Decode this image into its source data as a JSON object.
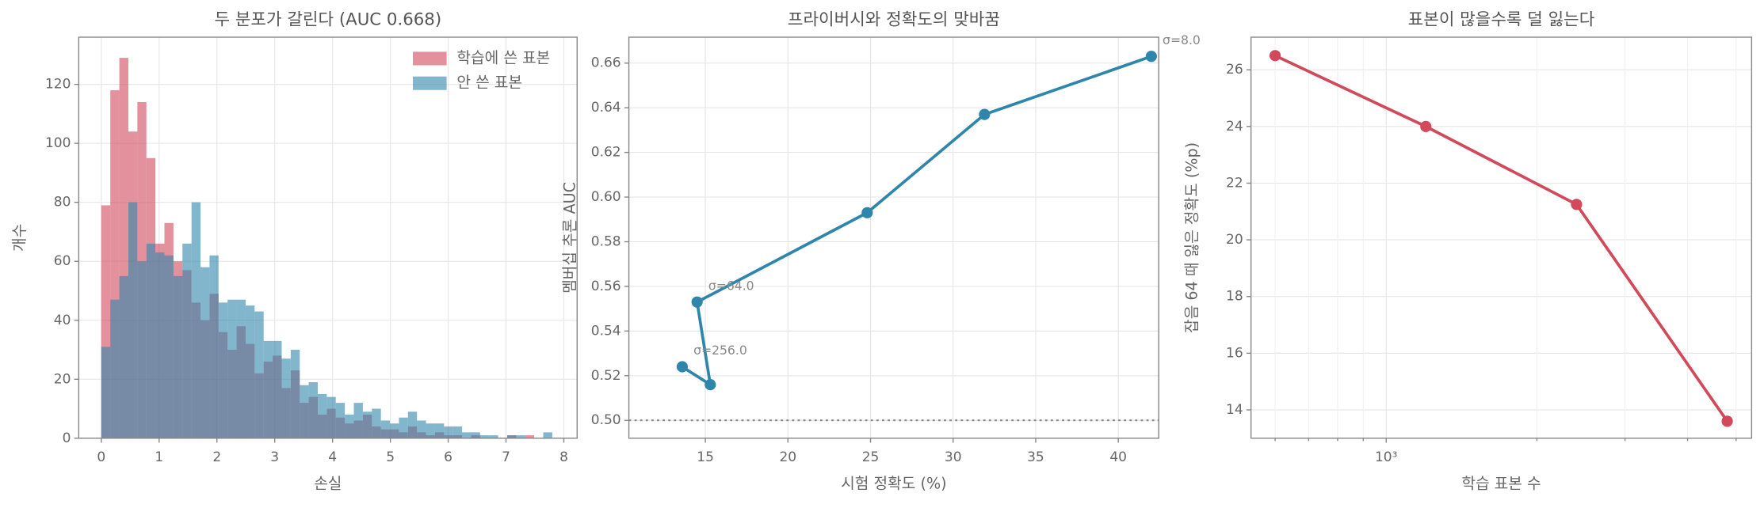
{
  "chart_data": [
    {
      "type": "histogram",
      "title": "두 분포가 갈린다 (AUC 0.668)",
      "xlabel": "손실",
      "ylabel": "개수",
      "bins": [
        0,
        0.156,
        0.312,
        0.468,
        0.624,
        0.78,
        0.936,
        1.092,
        1.248,
        1.404,
        1.56,
        1.716,
        1.872,
        2.028,
        2.184,
        2.34,
        2.496,
        2.652,
        2.808,
        2.964,
        3.12,
        3.276,
        3.432,
        3.588,
        3.744,
        3.9,
        4.056,
        4.212,
        4.368,
        4.524,
        4.68,
        4.836,
        4.992,
        5.148,
        5.304,
        5.46,
        5.616,
        5.772,
        5.928,
        6.084,
        6.24,
        6.396,
        6.552,
        6.708,
        6.864,
        7.02,
        7.176,
        7.332,
        7.488,
        7.644,
        7.8
      ],
      "series": [
        {
          "name": "학습에 쓴 표본",
          "color": "#d1495b",
          "values": [
            79,
            118,
            129,
            104,
            114,
            95,
            66,
            73,
            60,
            57,
            46,
            40,
            49,
            36,
            30,
            38,
            32,
            22,
            26,
            28,
            17,
            23,
            12,
            14,
            8,
            10,
            7,
            5,
            6,
            8,
            4,
            3,
            3,
            2,
            4,
            2,
            1,
            2,
            1,
            1,
            0,
            1,
            0,
            0,
            0,
            1,
            0,
            1,
            0,
            0
          ]
        },
        {
          "name": "안 쓴 표본",
          "color": "#2e86ab",
          "values": [
            31,
            47,
            55,
            80,
            60,
            66,
            63,
            62,
            55,
            66,
            80,
            58,
            62,
            46,
            47,
            47,
            45,
            43,
            33,
            33,
            27,
            30,
            18,
            19,
            15,
            14,
            12,
            8,
            12,
            9,
            10,
            6,
            5,
            7,
            9,
            6,
            5,
            5,
            4,
            4,
            2,
            2,
            1,
            1,
            0,
            1,
            1,
            0,
            0,
            2
          ]
        }
      ],
      "xlim": [
        -0.39,
        8.23
      ],
      "xticks": [
        0,
        1,
        2,
        3,
        4,
        5,
        6,
        7,
        8
      ],
      "ylim": [
        0,
        136
      ],
      "yticks": [
        0,
        20,
        40,
        60,
        80,
        100,
        120
      ],
      "grid": true,
      "legend": "upper right"
    },
    {
      "type": "line",
      "title": "프라이버시와 정확도의 맞바꿈",
      "xlabel": "시험 정확도 (%)",
      "ylabel": "멤버십 추론 AUC",
      "x": [
        13.6,
        15.3,
        14.5,
        24.8,
        31.9,
        42.0
      ],
      "values": [
        0.524,
        0.516,
        0.553,
        0.593,
        0.637,
        0.663
      ],
      "point_labels": [
        "σ=256.0",
        null,
        "σ=64.0",
        null,
        null,
        "σ=8.0"
      ],
      "color": "#2e86ab",
      "reference_line": 0.5,
      "xlim": [
        10.37,
        42.45
      ],
      "xticks": [
        15,
        20,
        25,
        30,
        35,
        40
      ],
      "ylim": [
        0.492,
        0.6716
      ],
      "yticks": [
        {
          "value": 0.5,
          "label": "0.50"
        },
        0.52,
        0.54,
        0.56,
        0.58,
        {
          "value": 0.6,
          "label": "0.60"
        },
        0.62,
        0.64,
        0.66
      ],
      "grid": true
    },
    {
      "type": "line",
      "title": "표본이 많을수록 덜 잃는다",
      "xlabel": "학습 표본 수",
      "ylabel": "잡음 64 때 잃은 정확도 (%p)",
      "x": [
        600,
        1200,
        2400,
        4800
      ],
      "values": [
        26.5,
        24.0,
        21.25,
        13.6
      ],
      "color": "#d1495b",
      "xscale": "log",
      "xlim": [
        537,
        5370
      ],
      "xticks": [
        {
          "value": 1000,
          "label": "10³"
        }
      ],
      "minor_xticks": [
        600,
        700,
        800,
        900,
        2000,
        3000,
        4000,
        5000
      ],
      "ylim": [
        13.0,
        27.15
      ],
      "yticks": [
        14,
        16,
        18,
        20,
        22,
        24,
        26
      ],
      "grid": true
    }
  ]
}
